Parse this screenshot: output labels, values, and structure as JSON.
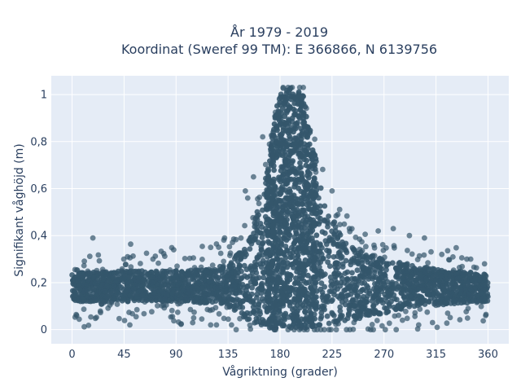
{
  "chart_data": {
    "type": "scatter",
    "title_line1": "År 1979 - 2019",
    "title_line2": "Koordinat (Sweref 99 TM): E 366866, N 6139756",
    "xlabel": "Vågriktning (grader)",
    "ylabel": "Signifikant våghöjd (m)",
    "xlim": [
      -18,
      378
    ],
    "ylim": [
      -0.06,
      1.08
    ],
    "x_ticks": [
      0,
      45,
      90,
      135,
      180,
      225,
      270,
      315,
      360
    ],
    "x_tick_labels": [
      "0",
      "45",
      "90",
      "135",
      "180",
      "225",
      "270",
      "315",
      "360"
    ],
    "y_ticks": [
      0,
      0.2,
      0.4,
      0.6,
      0.8,
      1
    ],
    "y_tick_labels": [
      "0",
      "0,2",
      "0,4",
      "0,6",
      "0,8",
      "1"
    ],
    "grid": true,
    "colors": {
      "marker": "#34566b",
      "plot_bg": "#e5ecf6",
      "grid": "#ffffff",
      "text": "#2a3f5f"
    },
    "series": [
      {
        "band_profile": [
          {
            "x": 0,
            "min": 0.12,
            "max": 0.24
          },
          {
            "x": 45,
            "min": 0.12,
            "max": 0.25
          },
          {
            "x": 90,
            "min": 0.12,
            "max": 0.25
          },
          {
            "x": 120,
            "min": 0.11,
            "max": 0.26
          },
          {
            "x": 135,
            "min": 0.1,
            "max": 0.28
          },
          {
            "x": 150,
            "min": 0.04,
            "max": 0.36
          },
          {
            "x": 160,
            "min": 0.02,
            "max": 0.5
          },
          {
            "x": 170,
            "min": 0.01,
            "max": 0.7
          },
          {
            "x": 175,
            "min": 0.0,
            "max": 0.9
          },
          {
            "x": 180,
            "min": 0.0,
            "max": 1.01
          },
          {
            "x": 190,
            "min": 0.0,
            "max": 1.03
          },
          {
            "x": 200,
            "min": 0.0,
            "max": 1.0
          },
          {
            "x": 205,
            "min": 0.0,
            "max": 0.88
          },
          {
            "x": 212,
            "min": 0.01,
            "max": 0.7
          },
          {
            "x": 220,
            "min": 0.02,
            "max": 0.53
          },
          {
            "x": 230,
            "min": 0.03,
            "max": 0.42
          },
          {
            "x": 245,
            "min": 0.04,
            "max": 0.34
          },
          {
            "x": 270,
            "min": 0.07,
            "max": 0.3
          },
          {
            "x": 300,
            "min": 0.1,
            "max": 0.27
          },
          {
            "x": 330,
            "min": 0.11,
            "max": 0.25
          },
          {
            "x": 360,
            "min": 0.12,
            "max": 0.24
          }
        ],
        "outliers": [
          {
            "x": 18,
            "y": 0.39
          },
          {
            "x": 4,
            "y": 0.06
          },
          {
            "x": 50,
            "y": 0.02
          },
          {
            "x": 48,
            "y": 0.31
          },
          {
            "x": 70,
            "y": 0.3
          },
          {
            "x": 88,
            "y": 0.34
          },
          {
            "x": 120,
            "y": 0.35
          },
          {
            "x": 125,
            "y": 0.02
          },
          {
            "x": 132,
            "y": 0.39
          },
          {
            "x": 150,
            "y": 0.59
          },
          {
            "x": 152,
            "y": 0.56
          },
          {
            "x": 157,
            "y": 0.65
          },
          {
            "x": 165,
            "y": 0.82
          },
          {
            "x": 225,
            "y": 0.59
          },
          {
            "x": 230,
            "y": 0.49
          },
          {
            "x": 240,
            "y": 0.43
          },
          {
            "x": 265,
            "y": 0.42
          },
          {
            "x": 278,
            "y": 0.43
          },
          {
            "x": 292,
            "y": 0.4
          },
          {
            "x": 305,
            "y": 0.39
          },
          {
            "x": 320,
            "y": 0.32
          },
          {
            "x": 345,
            "y": 0.3
          },
          {
            "x": 357,
            "y": 0.28
          },
          {
            "x": 300,
            "y": 0.02
          },
          {
            "x": 312,
            "y": 0.03
          },
          {
            "x": 316,
            "y": 0.01
          },
          {
            "x": 286,
            "y": 0.04
          },
          {
            "x": 244,
            "y": 0.03
          },
          {
            "x": 210,
            "y": 0.81
          },
          {
            "x": 211,
            "y": 0.67
          },
          {
            "x": 358,
            "y": 0.06
          },
          {
            "x": 120,
            "y": 0.02
          },
          {
            "x": 138,
            "y": 0.02
          }
        ]
      }
    ]
  }
}
